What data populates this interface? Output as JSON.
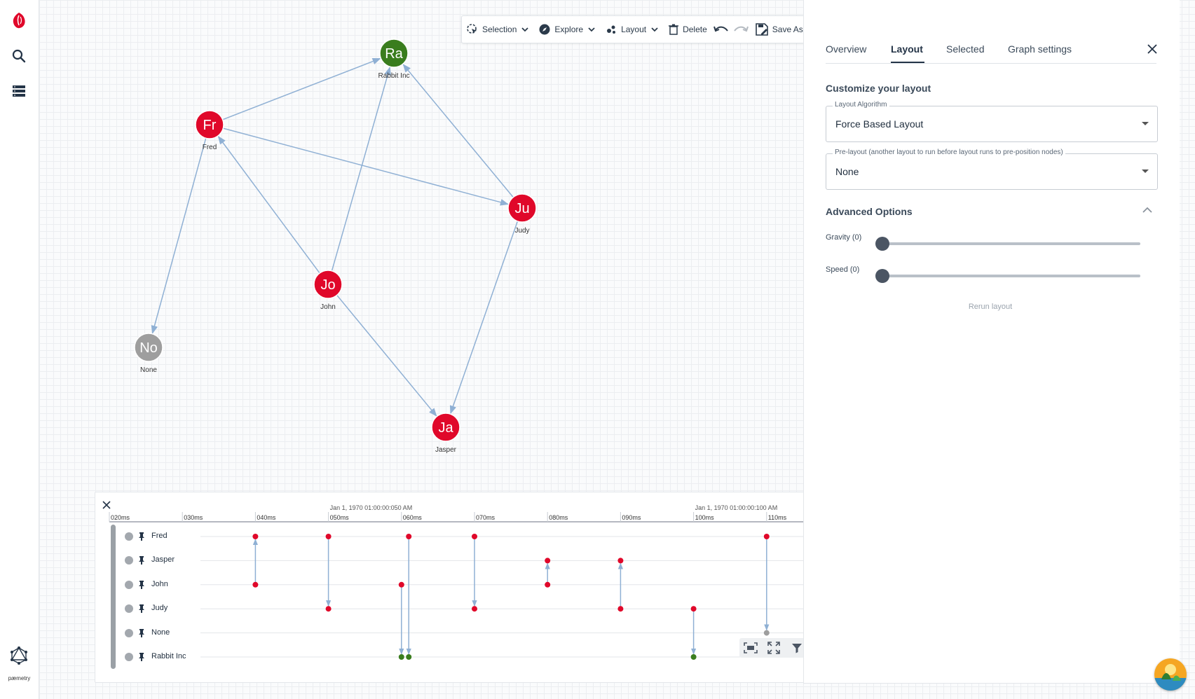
{
  "rail": {
    "brand": "pæmetry",
    "icons": [
      "app-logo-icon",
      "search-icon",
      "data-list-icon",
      "graphql-icon"
    ]
  },
  "toolbar": {
    "selection": "Selection",
    "explore": "Explore",
    "layout": "Layout",
    "delete": "Delete",
    "save_as": "Save As"
  },
  "graph": {
    "nodes": [
      {
        "id": "Ra",
        "initials": "Ra",
        "label": "Rabbit Inc",
        "color": "#3a7d1e"
      },
      {
        "id": "Fr",
        "initials": "Fr",
        "label": "Fred",
        "color": "#e0082a"
      },
      {
        "id": "Ju",
        "initials": "Ju",
        "label": "Judy",
        "color": "#e0082a"
      },
      {
        "id": "Jo",
        "initials": "Jo",
        "label": "John",
        "color": "#e0082a"
      },
      {
        "id": "No",
        "initials": "No",
        "label": "None",
        "color": "#9e9e9e"
      },
      {
        "id": "Ja",
        "initials": "Ja",
        "label": "Jasper",
        "color": "#e0082a"
      }
    ],
    "edges": [
      [
        "Fr",
        "Ra"
      ],
      [
        "Fr",
        "Ju"
      ],
      [
        "Fr",
        "No"
      ],
      [
        "Jo",
        "Fr"
      ],
      [
        "Jo",
        "Ra"
      ],
      [
        "Jo",
        "Ja"
      ],
      [
        "Ju",
        "Ra"
      ],
      [
        "Ju",
        "Ja"
      ]
    ],
    "edge_color": "#8fb0d4"
  },
  "panel": {
    "tabs": [
      "Overview",
      "Layout",
      "Selected",
      "Graph settings"
    ],
    "active_tab": "Layout",
    "customize_title": "Customize your layout",
    "layout_algorithm_label": "Layout Algorithm",
    "layout_algorithm_value": "Force Based Layout",
    "prelayout_label": "Pre-layout (another layout to run before layout runs to pre-position nodes)",
    "prelayout_value": "None",
    "advanced_title": "Advanced Options",
    "gravity_label": "Gravity (0)",
    "gravity_value": 0,
    "speed_label": "Speed (0)",
    "speed_value": 0,
    "rerun": "Rerun layout"
  },
  "timeline": {
    "major_labels": [
      "Jan 1, 1970 01:00:00:050 AM",
      "Jan 1, 1970 01:00:00:100 AM"
    ],
    "ticks": [
      "020ms",
      "030ms",
      "040ms",
      "050ms",
      "060ms",
      "070ms",
      "080ms",
      "090ms",
      "100ms",
      "110ms"
    ],
    "rows": [
      "Fred",
      "Jasper",
      "John",
      "Judy",
      "None",
      "Rabbit Inc"
    ],
    "events": [
      {
        "t": 40,
        "from": "John",
        "to": "Fred"
      },
      {
        "t": 50,
        "from": "Fred",
        "to": "Judy"
      },
      {
        "t": 60,
        "from": "John",
        "to": "Rabbit Inc"
      },
      {
        "t": 61,
        "from": "Fred",
        "to": "Rabbit Inc"
      },
      {
        "t": 70,
        "from": "Fred",
        "to": "Judy"
      },
      {
        "t": 80,
        "from": "John",
        "to": "Jasper"
      },
      {
        "t": 90,
        "from": "Judy",
        "to": "Jasper"
      },
      {
        "t": 100,
        "from": "Judy",
        "to": "Rabbit Inc"
      },
      {
        "t": 110,
        "from": "Fred",
        "to": "None"
      }
    ]
  }
}
